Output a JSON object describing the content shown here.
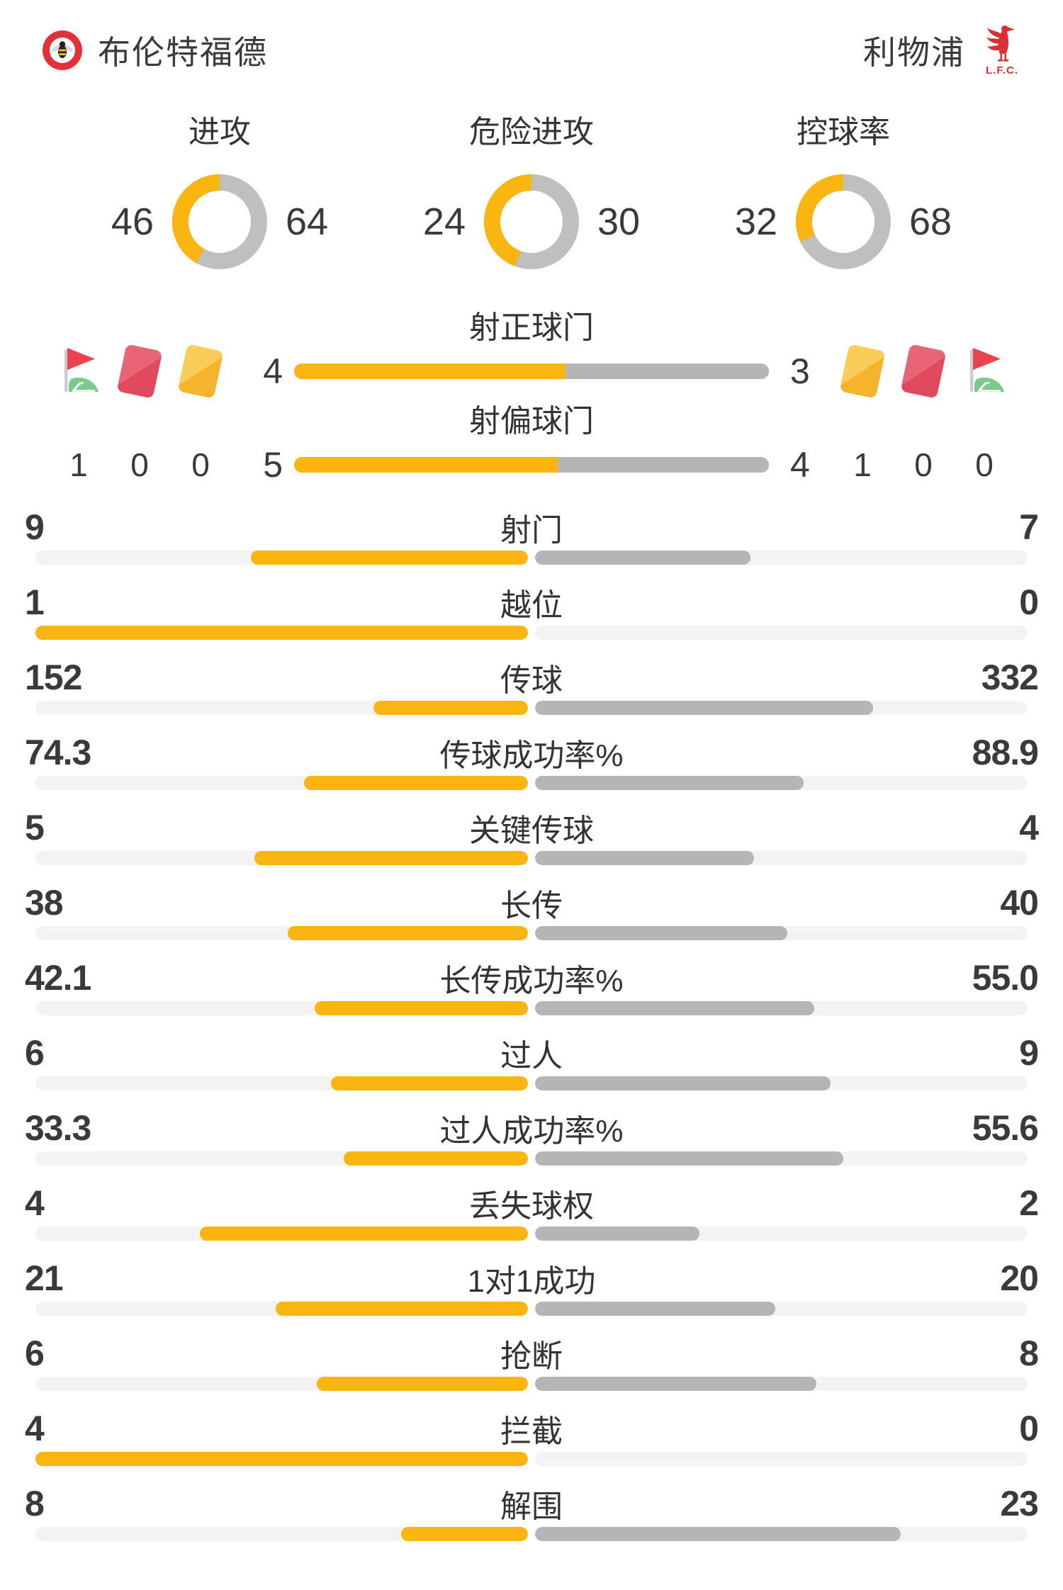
{
  "header": {
    "home_team": {
      "name": "布伦特福德"
    },
    "away_team": {
      "name": "利物浦",
      "crest_caption": "L.F.C."
    }
  },
  "donut_charts": [
    {
      "title": "进攻",
      "home": 46,
      "away": 64
    },
    {
      "title": "危险进攻",
      "home": 24,
      "away": 30
    },
    {
      "title": "控球率",
      "home": 32,
      "away": 68
    }
  ],
  "shot_bars": [
    {
      "label": "射正球门",
      "home": 4,
      "away": 3
    },
    {
      "label": "射偏球门",
      "home": 5,
      "away": 4
    }
  ],
  "cards_corners": {
    "home": [
      {
        "icon": "corner-flag",
        "value": "1"
      },
      {
        "icon": "red-card",
        "value": "0"
      },
      {
        "icon": "yellow-card",
        "value": "0"
      }
    ],
    "away": [
      {
        "icon": "yellow-card",
        "value": "1"
      },
      {
        "icon": "red-card",
        "value": "0"
      },
      {
        "icon": "corner-flag",
        "value": "0"
      }
    ]
  },
  "stats": [
    {
      "label": "射门",
      "home": "9",
      "away": "7"
    },
    {
      "label": "越位",
      "home": "1",
      "away": "0"
    },
    {
      "label": "传球",
      "home": "152",
      "away": "332"
    },
    {
      "label": "传球成功率%",
      "home": "74.3",
      "away": "88.9"
    },
    {
      "label": "关键传球",
      "home": "5",
      "away": "4"
    },
    {
      "label": "长传",
      "home": "38",
      "away": "40"
    },
    {
      "label": "长传成功率%",
      "home": "42.1",
      "away": "55.0"
    },
    {
      "label": "过人",
      "home": "6",
      "away": "9"
    },
    {
      "label": "过人成功率%",
      "home": "33.3",
      "away": "55.6"
    },
    {
      "label": "丢失球权",
      "home": "4",
      "away": "2"
    },
    {
      "label": "1对1成功",
      "home": "21",
      "away": "20"
    },
    {
      "label": "抢断",
      "home": "6",
      "away": "8"
    },
    {
      "label": "拦截",
      "home": "4",
      "away": "0"
    },
    {
      "label": "解围",
      "home": "8",
      "away": "23"
    }
  ],
  "colors": {
    "home_accent": "#FAB511",
    "away_accent": "#B5B5B5",
    "track": "#F3F3F3",
    "donut_away": "#BFBFBF",
    "card_red": "#E04A5C",
    "card_yellow": "#F5B42C",
    "flag_red": "#E8434E",
    "flag_green": "#7CC98B",
    "pole_gray": "#C8CCD2",
    "lfc_red": "#DC2F34",
    "crest_red": "#E23238",
    "text": "#333333"
  }
}
